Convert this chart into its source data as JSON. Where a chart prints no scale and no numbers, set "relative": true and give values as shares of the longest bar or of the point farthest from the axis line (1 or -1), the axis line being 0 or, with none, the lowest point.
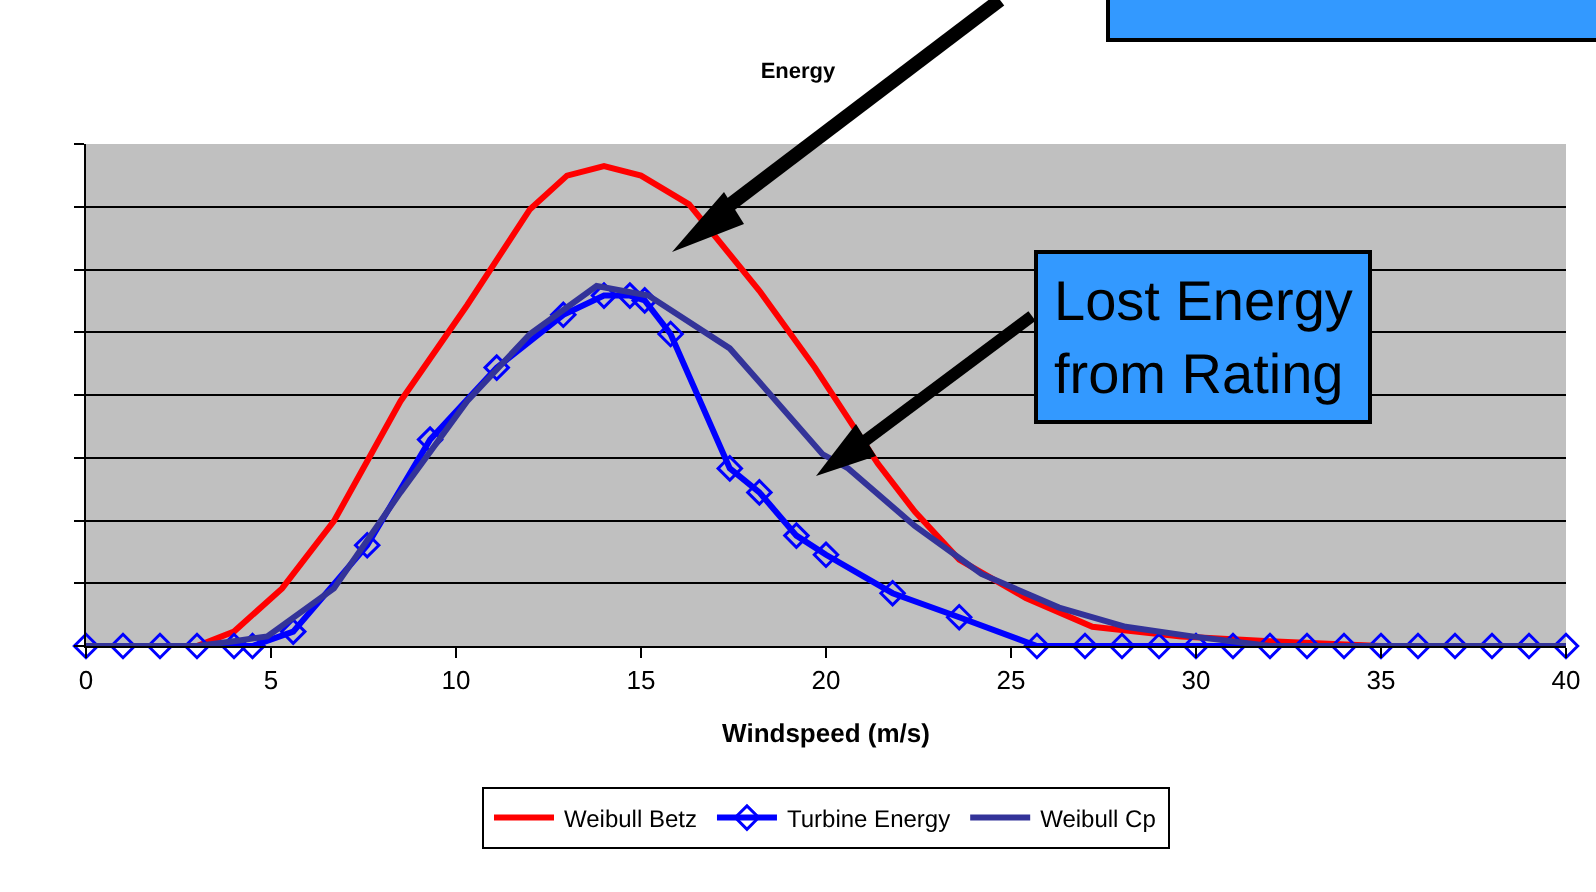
{
  "chart_data": {
    "type": "line",
    "title": "Energy",
    "xlabel": "Windspeed (m/s)",
    "relative": true,
    "xlim": [
      0,
      40
    ],
    "xticks": [
      0,
      5,
      10,
      15,
      20,
      25,
      30,
      35,
      40
    ],
    "grid": "y",
    "legend": "bottom",
    "line_style": "solid",
    "marker": "none",
    "series": [
      {
        "name": "Weibull Betz",
        "color": "#ff0000",
        "x": [
          0,
          3,
          4,
          5.3,
          6.7,
          8.5,
          10.3,
          12,
          13,
          14,
          15,
          16.3,
          18.2,
          19.7,
          21.4,
          22.4,
          23.6,
          25.4,
          27.2,
          29.6,
          32,
          35,
          40
        ],
        "values": [
          0,
          0,
          0.03,
          0.12,
          0.26,
          0.51,
          0.71,
          0.91,
          0.98,
          1,
          0.98,
          0.92,
          0.74,
          0.58,
          0.38,
          0.28,
          0.18,
          0.1,
          0.04,
          0.02,
          0.01,
          0,
          0
        ]
      },
      {
        "name": "Turbine Energy",
        "color": "#0000ff",
        "marker": "diamond",
        "x": [
          0,
          1,
          2,
          3,
          4,
          4.5,
          5.6,
          7.6,
          9.3,
          11.1,
          12.9,
          14,
          14.7,
          15.1,
          15.8,
          17.4,
          18.2,
          19.2,
          20,
          21.8,
          23.6,
          25.7,
          27,
          28,
          29,
          30,
          31,
          32,
          33,
          34,
          35,
          36,
          37,
          38,
          39,
          40
        ],
        "values": [
          0,
          0,
          0,
          0,
          0,
          0,
          0.03,
          0.21,
          0.43,
          0.58,
          0.69,
          0.73,
          0.73,
          0.72,
          0.65,
          0.37,
          0.32,
          0.23,
          0.19,
          0.11,
          0.06,
          0,
          0,
          0,
          0,
          0,
          0,
          0,
          0,
          0,
          0,
          0,
          0,
          0,
          0,
          0
        ]
      },
      {
        "name": "Weibull Cp",
        "color": "#333399",
        "x": [
          0,
          3,
          4,
          4.9,
          6.7,
          8.5,
          10.3,
          12,
          13.8,
          15.2,
          17.4,
          18.2,
          19.9,
          20.6,
          22.4,
          24.2,
          26.3,
          28.1,
          29.9,
          32,
          40
        ],
        "values": [
          0,
          0,
          0.01,
          0.02,
          0.12,
          0.32,
          0.51,
          0.65,
          0.75,
          0.73,
          0.62,
          0.55,
          0.4,
          0.37,
          0.25,
          0.15,
          0.08,
          0.04,
          0.02,
          0,
          0
        ]
      }
    ],
    "annotations": [
      "Lost Energy from Rating"
    ]
  }
}
